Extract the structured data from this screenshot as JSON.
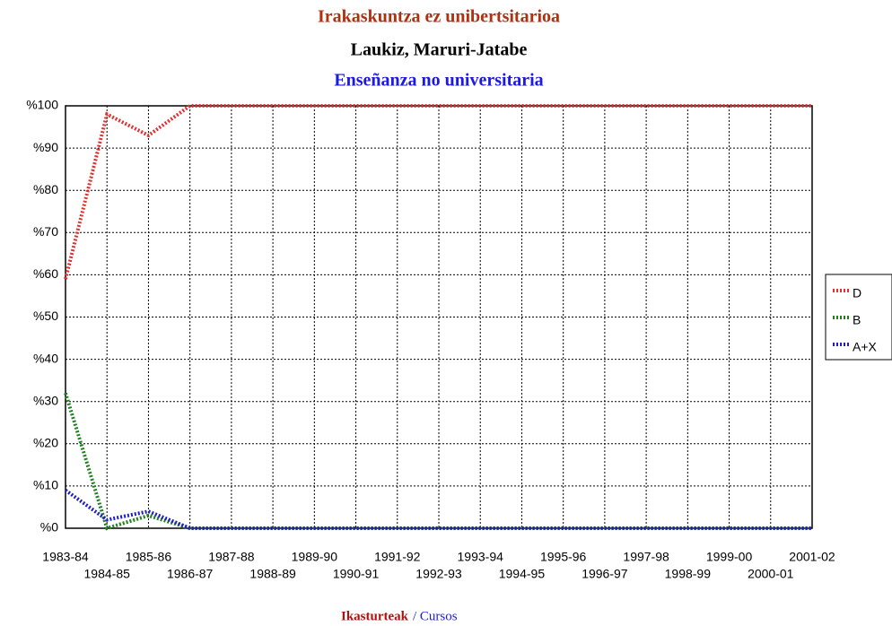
{
  "chart_data": {
    "type": "line",
    "title": "Irakaskuntza ez unibertsitarioa",
    "subtitle": "Laukiz, Maruri-Jatabe",
    "subtitle2": "Enseñanza no universitaria",
    "x_label": "Ikasturteak",
    "x_label2": "/ Cursos",
    "categories": [
      "1983-84",
      "1984-85",
      "1985-86",
      "1986-87",
      "1987-88",
      "1988-89",
      "1989-90",
      "1990-91",
      "1991-92",
      "1992-93",
      "1993-94",
      "1994-95",
      "1995-96",
      "1996-97",
      "1997-98",
      "1998-99",
      "1999-00",
      "2000-01",
      "2001-02"
    ],
    "series": [
      {
        "name": "D",
        "color": "#e03030",
        "values": [
          59,
          98,
          93,
          100,
          100,
          100,
          100,
          100,
          100,
          100,
          100,
          100,
          100,
          100,
          100,
          100,
          100,
          100,
          100
        ]
      },
      {
        "name": "B",
        "color": "#208020",
        "values": [
          32,
          0,
          3,
          0,
          0,
          0,
          0,
          0,
          0,
          0,
          0,
          0,
          0,
          0,
          0,
          0,
          0,
          0,
          0
        ]
      },
      {
        "name": "A+X",
        "color": "#2020c0",
        "values": [
          9,
          2,
          4,
          0,
          0,
          0,
          0,
          0,
          0,
          0,
          0,
          0,
          0,
          0,
          0,
          0,
          0,
          0,
          0
        ]
      }
    ],
    "ylim": [
      0,
      100
    ],
    "yticks": [
      {
        "value": 0,
        "label": "%0"
      },
      {
        "value": 10,
        "label": "%10"
      },
      {
        "value": 20,
        "label": "%20"
      },
      {
        "value": 30,
        "label": "%30"
      },
      {
        "value": 40,
        "label": "%40"
      },
      {
        "value": 50,
        "label": "%50"
      },
      {
        "value": 60,
        "label": "%60"
      },
      {
        "value": 70,
        "label": "%70"
      },
      {
        "value": 80,
        "label": "%80"
      },
      {
        "value": 90,
        "label": "%90"
      },
      {
        "value": 100,
        "label": "%100"
      }
    ],
    "grid": true
  }
}
